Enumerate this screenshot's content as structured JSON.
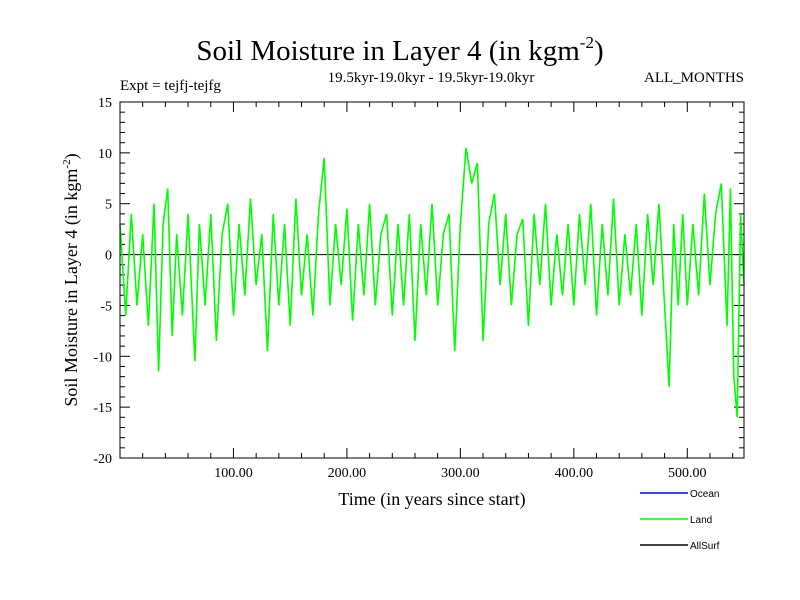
{
  "chart_data": {
    "type": "line",
    "title": "Soil Moisture in Layer 4 (in kgm",
    "title_sup": "-2",
    "title_end": ")",
    "subtitle_left": "Expt = tejfj-tejfg",
    "subtitle_center": "19.5kyr-19.0kyr - 19.5kyr-19.0kyr",
    "subtitle_right": "ALL_MONTHS",
    "xlabel": "Time (in years since start)",
    "ylabel": "Soil Moisture in Layer 4 (in kgm",
    "ylabel_sup": "-2",
    "ylabel_end": ")",
    "xlim": [
      0,
      550
    ],
    "ylim": [
      -20,
      15
    ],
    "xticks": [
      100,
      200,
      300,
      400,
      500
    ],
    "xtick_labels": [
      "100.00",
      "200.00",
      "300.00",
      "400.00",
      "500.00"
    ],
    "yticks": [
      -20,
      -15,
      -10,
      -5,
      0,
      5,
      10,
      15
    ],
    "ytick_labels": [
      "-20",
      "-15",
      "-10",
      "-5",
      "0",
      "5",
      "10",
      "15"
    ],
    "zero_line": true,
    "legend_position": "bottom-right",
    "series": [
      {
        "name": "Ocean",
        "color": "#0000ff",
        "x": [],
        "values": []
      },
      {
        "name": "Land",
        "color": "#00ff00",
        "x": [
          0,
          5,
          10,
          15,
          20,
          25,
          30,
          34,
          38,
          42,
          46,
          50,
          55,
          60,
          66,
          70,
          75,
          80,
          85,
          90,
          95,
          100,
          105,
          110,
          115,
          120,
          125,
          130,
          135,
          140,
          145,
          150,
          155,
          160,
          165,
          170,
          175,
          180,
          185,
          190,
          195,
          200,
          205,
          210,
          215,
          220,
          225,
          230,
          235,
          240,
          245,
          250,
          255,
          260,
          265,
          270,
          275,
          280,
          285,
          290,
          295,
          300,
          305,
          310,
          315,
          320,
          325,
          330,
          335,
          340,
          345,
          350,
          355,
          360,
          365,
          370,
          375,
          380,
          385,
          390,
          395,
          400,
          405,
          410,
          415,
          420,
          425,
          430,
          435,
          440,
          445,
          450,
          455,
          460,
          465,
          470,
          475,
          480,
          484,
          488,
          492,
          496,
          500,
          505,
          510,
          515,
          520,
          525,
          530,
          535,
          538,
          541,
          544,
          547,
          550
        ],
        "values": [
          3,
          -6,
          4,
          -5,
          2,
          -7,
          5,
          -11.5,
          3,
          6.5,
          -8,
          2,
          -6,
          4,
          -10.5,
          3,
          -5,
          4,
          -8.5,
          2,
          5,
          -6,
          3,
          -4,
          5.5,
          -3,
          2,
          -9.5,
          4,
          -5,
          3,
          -7,
          5.5,
          -4,
          2,
          -6,
          4,
          9.5,
          -5,
          3,
          -3,
          4.5,
          -6.5,
          3,
          -4,
          5,
          -5,
          2,
          4,
          -6,
          3,
          -5,
          4,
          -8.5,
          3,
          -4,
          5,
          -5,
          2,
          4,
          -9.5,
          3,
          10.5,
          7,
          9,
          -8.5,
          3,
          6,
          -3,
          4,
          -5,
          2,
          3.5,
          -7,
          4,
          -3,
          5,
          -5,
          2,
          -4,
          3,
          -5,
          4,
          -3,
          5,
          -6,
          3,
          -4,
          5.5,
          -5,
          2,
          -4,
          3,
          -6,
          4,
          -3,
          5,
          -5,
          -13,
          3,
          -5,
          4,
          -5,
          3,
          -4,
          6,
          -3,
          4,
          7,
          -7,
          6.5,
          -12,
          -16,
          4,
          -3
        ]
      },
      {
        "name": "AllSurf",
        "color": "#000000",
        "x": [],
        "values": []
      }
    ]
  }
}
